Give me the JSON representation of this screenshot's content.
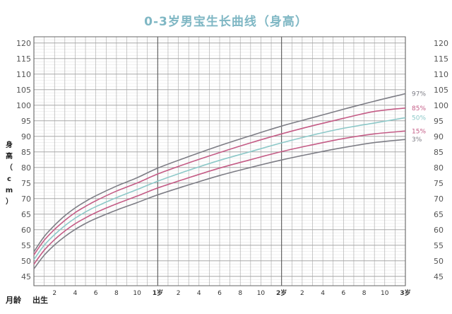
{
  "chart_data": {
    "type": "line",
    "title": "0-3岁男宝生长曲线（身高）",
    "ylabel_chars": [
      "身",
      "高",
      "（",
      "c",
      "m",
      "）"
    ],
    "xlabel": "月龄",
    "birth_label": "出生",
    "xlim": [
      0,
      36
    ],
    "ylim": [
      42,
      122
    ],
    "y_ticks": [
      45,
      50,
      55,
      60,
      65,
      70,
      75,
      80,
      85,
      90,
      95,
      100,
      105,
      110,
      115,
      120
    ],
    "x_tick_labels": [
      {
        "x": 2,
        "label": "2"
      },
      {
        "x": 4,
        "label": "4"
      },
      {
        "x": 6,
        "label": "6"
      },
      {
        "x": 8,
        "label": "8"
      },
      {
        "x": 10,
        "label": "10"
      },
      {
        "x": 12,
        "label": "1岁"
      },
      {
        "x": 14,
        "label": "2"
      },
      {
        "x": 16,
        "label": "4"
      },
      {
        "x": 18,
        "label": "6"
      },
      {
        "x": 20,
        "label": "8"
      },
      {
        "x": 22,
        "label": "10"
      },
      {
        "x": 24,
        "label": "2岁"
      },
      {
        "x": 26,
        "label": "2"
      },
      {
        "x": 28,
        "label": "4"
      },
      {
        "x": 30,
        "label": "6"
      },
      {
        "x": 32,
        "label": "8"
      },
      {
        "x": 34,
        "label": "10"
      },
      {
        "x": 36,
        "label": "3岁"
      }
    ],
    "grid": true,
    "x": [
      0,
      1,
      2,
      3,
      4,
      5,
      6,
      8,
      10,
      12,
      15,
      18,
      21,
      24,
      27,
      30,
      33,
      36
    ],
    "series": [
      {
        "name": "97%",
        "color": "#7d7d85",
        "values": [
          52.9,
          57.8,
          61.4,
          64.5,
          67.0,
          69.1,
          70.9,
          74.0,
          76.7,
          79.8,
          83.5,
          87.0,
          90.2,
          93.3,
          96.0,
          98.7,
          101.3,
          103.7
        ]
      },
      {
        "name": "85%",
        "color": "#c45c86",
        "values": [
          51.9,
          56.6,
          60.1,
          63.0,
          65.5,
          67.5,
          69.3,
          72.4,
          75.0,
          77.9,
          81.5,
          84.8,
          87.9,
          90.8,
          93.4,
          95.8,
          98.0,
          99.1
        ]
      },
      {
        "name": "50%",
        "color": "#8cc8c8",
        "values": [
          50.4,
          55.0,
          58.4,
          61.3,
          63.7,
          65.7,
          67.4,
          70.3,
          72.9,
          75.6,
          79.1,
          82.3,
          85.1,
          87.9,
          90.4,
          92.6,
          94.3,
          96.0
        ]
      },
      {
        "name": "15%",
        "color": "#c45c86",
        "values": [
          48.9,
          53.4,
          56.8,
          59.6,
          61.9,
          63.8,
          65.5,
          68.3,
          70.8,
          73.4,
          76.7,
          79.8,
          82.5,
          85.1,
          87.3,
          89.3,
          90.8,
          91.7
        ]
      },
      {
        "name": "3%",
        "color": "#7d7d85",
        "values": [
          47.4,
          51.8,
          55.1,
          57.8,
          60.1,
          62.0,
          63.6,
          66.3,
          68.7,
          71.2,
          74.4,
          77.4,
          80.0,
          82.4,
          84.5,
          86.4,
          88.0,
          89.0
        ]
      }
    ]
  }
}
